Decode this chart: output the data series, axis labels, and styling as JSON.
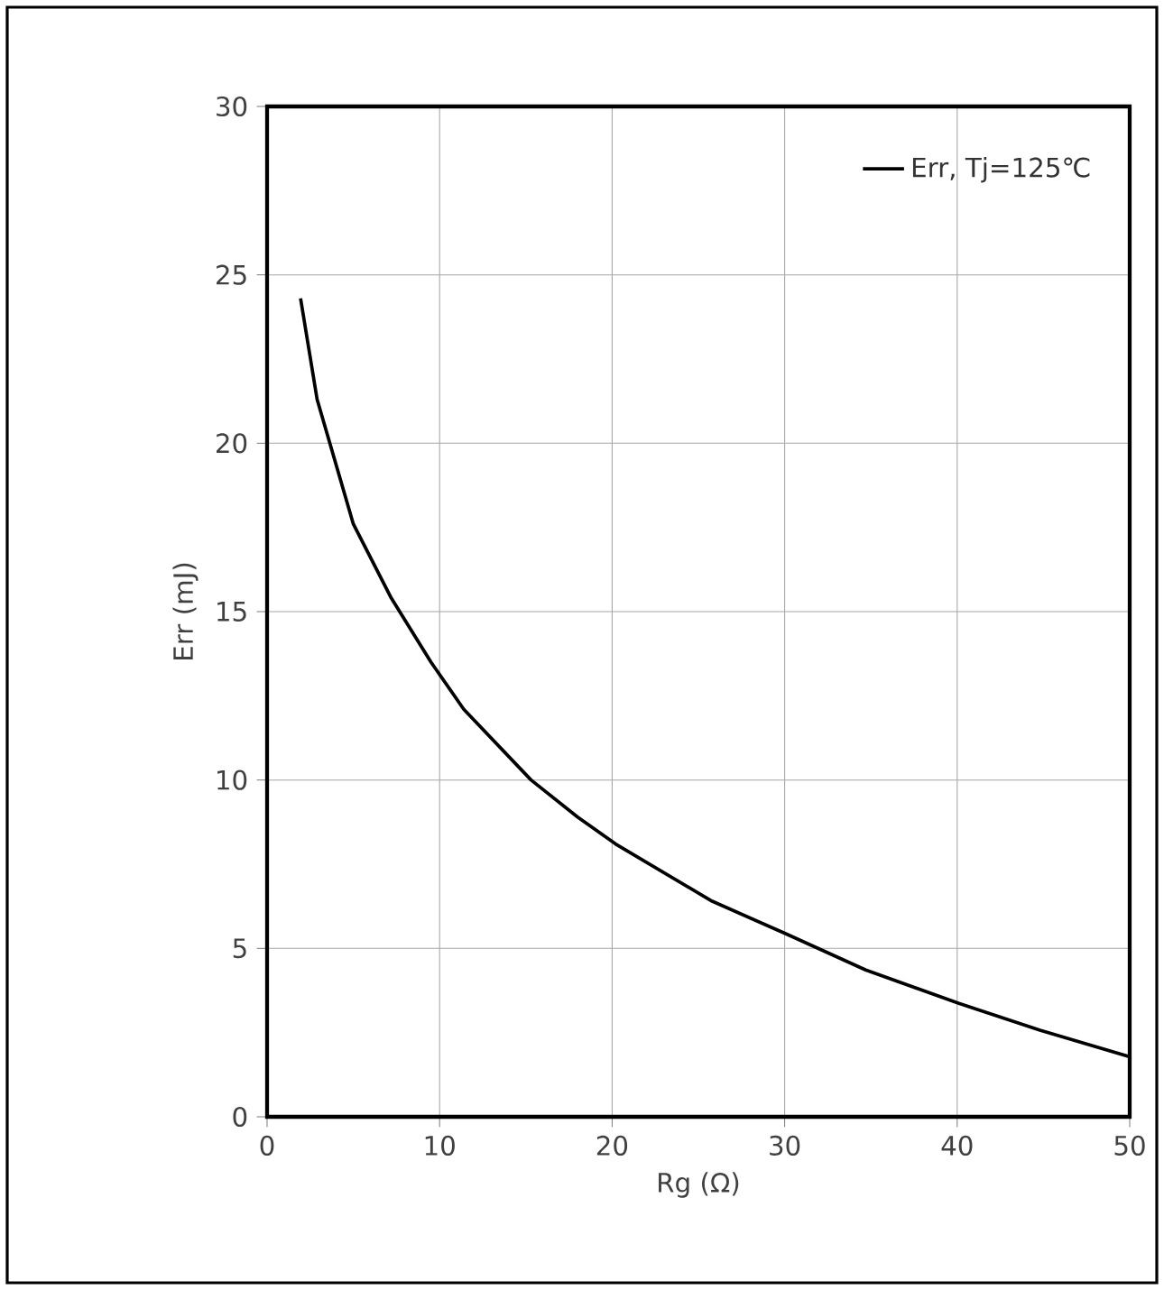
{
  "chart_data": {
    "type": "line",
    "xlabel": "Rg (Ω)",
    "ylabel": "Err (mJ)",
    "x": [
      1.94,
      2.9,
      5.0,
      7.2,
      9.5,
      11.4,
      15.3,
      18,
      20.2,
      25.8,
      30,
      34.7,
      40.1,
      44.8,
      50
    ],
    "series": [
      {
        "name": "Err, Tj=125℃",
        "color": "#000000",
        "values": [
          24.3,
          21.3,
          17.6,
          15.4,
          13.5,
          12.1,
          10.0,
          8.9,
          8.1,
          6.4,
          5.45,
          4.36,
          3.37,
          2.57,
          1.78
        ]
      }
    ],
    "xlim": [
      0,
      50
    ],
    "ylim": [
      0,
      30
    ],
    "xticks": [
      0,
      10,
      20,
      30,
      40,
      50
    ],
    "yticks": [
      0,
      5,
      10,
      15,
      20,
      25,
      30
    ],
    "grid": true,
    "legend": "top right",
    "line_style": "solid",
    "marker": "none"
  }
}
